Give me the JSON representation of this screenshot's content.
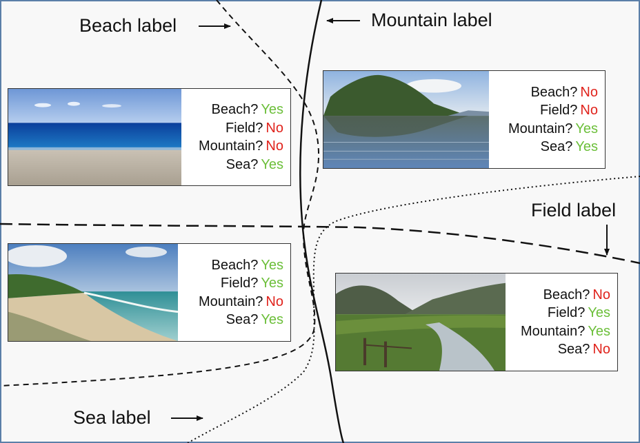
{
  "labels": {
    "beach": "Beach label",
    "mountain": "Mountain label",
    "field": "Field label",
    "sea": "Sea label"
  },
  "cards": [
    {
      "rows": [
        {
          "q": "Beach?",
          "a": "Yes"
        },
        {
          "q": "Field?",
          "a": "No"
        },
        {
          "q": "Mountain?",
          "a": "No"
        },
        {
          "q": "Sea?",
          "a": "Yes"
        }
      ]
    },
    {
      "rows": [
        {
          "q": "Beach?",
          "a": "No"
        },
        {
          "q": "Field?",
          "a": "No"
        },
        {
          "q": "Mountain?",
          "a": "Yes"
        },
        {
          "q": "Sea?",
          "a": "Yes"
        }
      ]
    },
    {
      "rows": [
        {
          "q": "Beach?",
          "a": "Yes"
        },
        {
          "q": "Field?",
          "a": "Yes"
        },
        {
          "q": "Mountain?",
          "a": "No"
        },
        {
          "q": "Sea?",
          "a": "Yes"
        }
      ]
    },
    {
      "rows": [
        {
          "q": "Beach?",
          "a": "No"
        },
        {
          "q": "Field?",
          "a": "Yes"
        },
        {
          "q": "Mountain?",
          "a": "Yes"
        },
        {
          "q": "Sea?",
          "a": "No"
        }
      ]
    }
  ],
  "colors": {
    "yes": "#6cbf3a",
    "no": "#e0231c",
    "frame": "#5b7fa8"
  }
}
